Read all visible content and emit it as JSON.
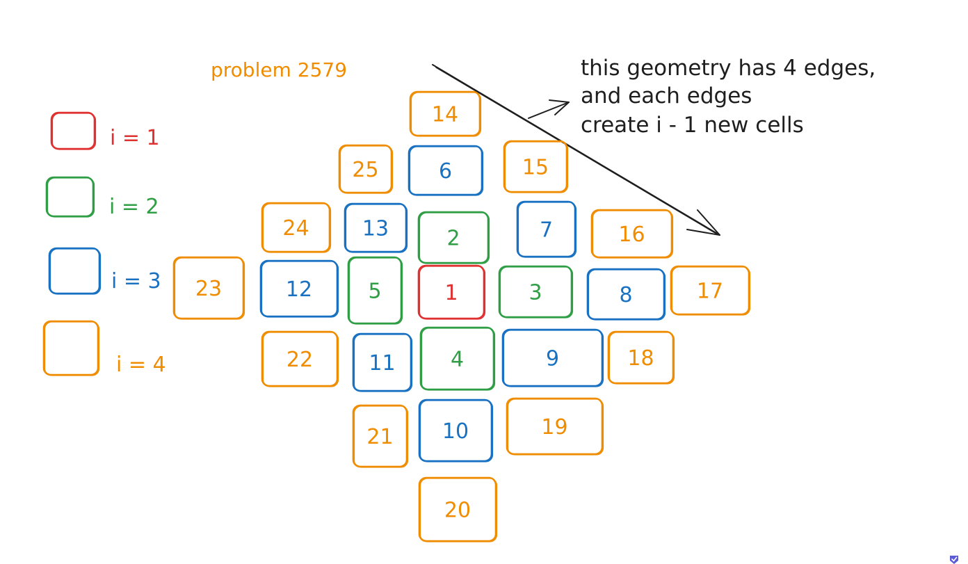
{
  "title": "problem 2579",
  "annotation": [
    "this geometry has 4 edges,",
    "and each edges",
    "create i - 1 new cells"
  ],
  "colors": {
    "i1": "#e03131",
    "i2": "#2f9e44",
    "i3": "#1971c2",
    "i4": "#f08c00",
    "ink": "#1e1e1e"
  },
  "legend": [
    {
      "label": "i = 1",
      "color_key": "i1"
    },
    {
      "label": "i = 2",
      "color_key": "i2"
    },
    {
      "label": "i = 3",
      "color_key": "i3"
    },
    {
      "label": "i = 4",
      "color_key": "i4"
    }
  ],
  "cells": [
    {
      "label": "1",
      "color_key": "i1"
    },
    {
      "label": "2",
      "color_key": "i2"
    },
    {
      "label": "3",
      "color_key": "i2"
    },
    {
      "label": "4",
      "color_key": "i2"
    },
    {
      "label": "5",
      "color_key": "i2"
    },
    {
      "label": "6",
      "color_key": "i3"
    },
    {
      "label": "7",
      "color_key": "i3"
    },
    {
      "label": "8",
      "color_key": "i3"
    },
    {
      "label": "9",
      "color_key": "i3"
    },
    {
      "label": "10",
      "color_key": "i3"
    },
    {
      "label": "11",
      "color_key": "i3"
    },
    {
      "label": "12",
      "color_key": "i3"
    },
    {
      "label": "13",
      "color_key": "i3"
    },
    {
      "label": "14",
      "color_key": "i4"
    },
    {
      "label": "15",
      "color_key": "i4"
    },
    {
      "label": "16",
      "color_key": "i4"
    },
    {
      "label": "17",
      "color_key": "i4"
    },
    {
      "label": "18",
      "color_key": "i4"
    },
    {
      "label": "19",
      "color_key": "i4"
    },
    {
      "label": "20",
      "color_key": "i4"
    },
    {
      "label": "21",
      "color_key": "i4"
    },
    {
      "label": "22",
      "color_key": "i4"
    },
    {
      "label": "23",
      "color_key": "i4"
    },
    {
      "label": "24",
      "color_key": "i4"
    },
    {
      "label": "25",
      "color_key": "i4"
    }
  ]
}
